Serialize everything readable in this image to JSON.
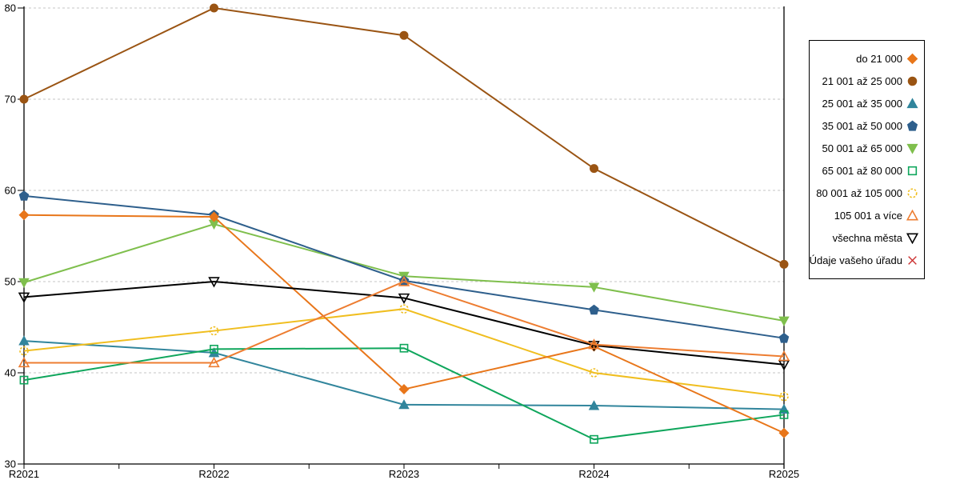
{
  "chart_data": {
    "type": "line",
    "title": "",
    "xlabel": "",
    "ylabel": "",
    "categories": [
      "R2021",
      "R2022",
      "R2023",
      "R2024",
      "R2025"
    ],
    "ylim": [
      30,
      80
    ],
    "ytick_step": 10,
    "ytick_labels": [
      "30",
      "40",
      "50",
      "60",
      "70",
      "80"
    ],
    "grid": "dashed-horizontal",
    "grid_color": "#c6c6c6",
    "axis_color": "#000000",
    "legend_position": "right",
    "draw_order": [
      4,
      2,
      3,
      1,
      6,
      5,
      0,
      8,
      7,
      9
    ],
    "series": [
      {
        "name": "do 21 000",
        "color": "#E8761A",
        "marker": "diamond",
        "filled": true,
        "values": [
          57.3,
          57.1,
          38.2,
          42.9,
          33.4
        ]
      },
      {
        "name": "21 001 až 25 000",
        "color": "#9A5413",
        "marker": "circle",
        "filled": true,
        "values": [
          70.0,
          80.0,
          77.0,
          62.4,
          51.9
        ]
      },
      {
        "name": "25 001 až 35 000",
        "color": "#31859C",
        "marker": "triangle-up",
        "filled": true,
        "values": [
          43.5,
          42.2,
          36.5,
          36.4,
          36.0
        ]
      },
      {
        "name": "35 001 až 50 000",
        "color": "#2E5F8C",
        "marker": "pentagon",
        "filled": true,
        "values": [
          59.4,
          57.3,
          50.1,
          46.9,
          43.8
        ]
      },
      {
        "name": "50 001 až 65 000",
        "color": "#7FBF4D",
        "marker": "triangle-down",
        "filled": true,
        "values": [
          49.9,
          56.3,
          50.6,
          49.4,
          45.7
        ]
      },
      {
        "name": "65 001 až 80 000",
        "color": "#0FA65C",
        "marker": "square",
        "filled": false,
        "values": [
          39.2,
          42.6,
          42.7,
          32.7,
          35.4
        ]
      },
      {
        "name": "80 001 až 105 000",
        "color": "#F0BE1F",
        "marker": "circle",
        "filled": false,
        "values": [
          42.4,
          44.6,
          47.0,
          40.0,
          37.4
        ]
      },
      {
        "name": "105 001 a více",
        "color": "#ED7D31",
        "marker": "triangle-up",
        "filled": false,
        "values": [
          41.1,
          41.1,
          50.0,
          43.1,
          41.8
        ]
      },
      {
        "name": "všechna města",
        "color": "#000000",
        "marker": "triangle-down",
        "filled": false,
        "values": [
          48.3,
          50.0,
          48.2,
          43.0,
          40.9
        ]
      },
      {
        "name": "Údaje vašeho úřadu",
        "color": "#CC3333",
        "marker": "x",
        "filled": false,
        "values": []
      }
    ]
  }
}
